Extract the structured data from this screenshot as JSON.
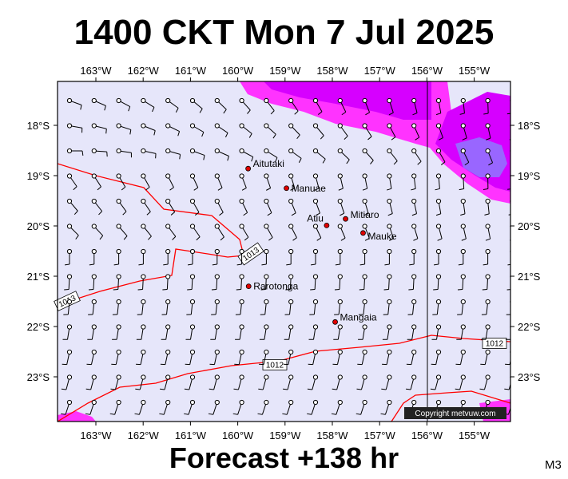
{
  "title": "1400 CKT Mon 7 Jul 2025",
  "footer": "Forecast +138 hr",
  "model_code": "M3",
  "copyright": "Copyright metvuw.com",
  "colors": {
    "background": "#e6e6fa",
    "precip_light": "#ff33ff",
    "precip_mid": "#d600ff",
    "precip_heavy": "#9966ff",
    "precip_core": "#6633ff",
    "isobar": "#ff0000",
    "barb": "#000000"
  },
  "map": {
    "lon_range": [
      -163.75,
      -154.5
    ],
    "lat_range": [
      -23.85,
      -17.5
    ],
    "lon_ticks": [
      "163°W",
      "162°W",
      "161°W",
      "160°W",
      "159°W",
      "158°W",
      "157°W",
      "156°W",
      "155°W"
    ],
    "lat_ticks": [
      "18°S",
      "19°S",
      "20°S",
      "21°S",
      "22°S",
      "23°S"
    ]
  },
  "places": [
    {
      "name": "Aitutaki",
      "lon": -159.78,
      "lat": -18.86
    },
    {
      "name": "Manuae",
      "lon": -158.97,
      "lat": -19.25
    },
    {
      "name": "Atiu",
      "lon": -158.12,
      "lat": -19.99
    },
    {
      "name": "Mitiaro",
      "lon": -157.72,
      "lat": -19.86
    },
    {
      "name": "Mauke",
      "lon": -157.35,
      "lat": -20.14
    },
    {
      "name": "Rarotonga",
      "lon": -159.77,
      "lat": -21.2
    },
    {
      "name": "Mangaia",
      "lon": -157.94,
      "lat": -21.91
    }
  ],
  "isobars": [
    {
      "label": "1013"
    },
    {
      "label": "1012"
    },
    {
      "label": "1012"
    }
  ]
}
